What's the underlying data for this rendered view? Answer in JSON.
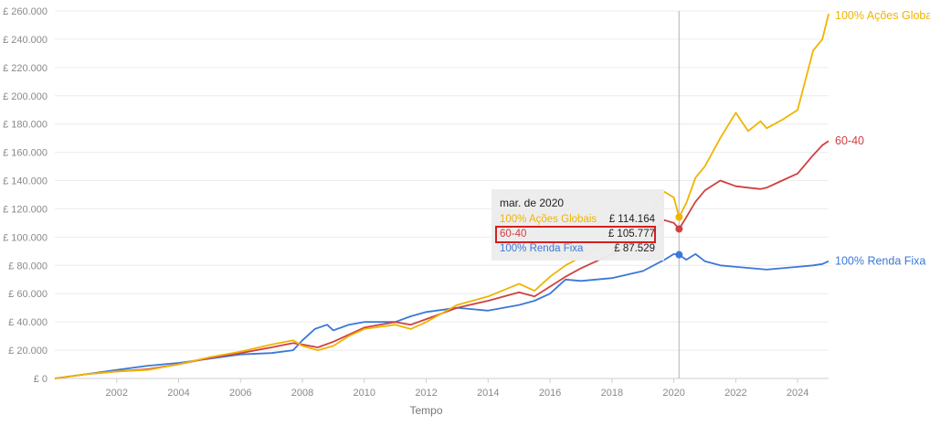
{
  "chart_data": {
    "type": "line",
    "xlabel": "Tempo",
    "ylabel": "",
    "xlim": [
      2000.0,
      2025.0
    ],
    "ylim": [
      0,
      260000
    ],
    "y_ticks": [
      0,
      20000,
      40000,
      60000,
      80000,
      100000,
      120000,
      140000,
      160000,
      180000,
      200000,
      220000,
      240000,
      260000
    ],
    "y_tick_labels": [
      "£ 0",
      "£ 20.000",
      "£ 40.000",
      "£ 60.000",
      "£ 80.000",
      "£ 100.000",
      "£ 120.000",
      "£ 140.000",
      "£ 160.000",
      "£ 180.000",
      "£ 200.000",
      "£ 220.000",
      "£ 240.000",
      "£ 260.000"
    ],
    "x_ticks": [
      2002,
      2004,
      2006,
      2008,
      2010,
      2012,
      2014,
      2016,
      2018,
      2020,
      2022,
      2024
    ],
    "x_tick_labels": [
      "2002",
      "2004",
      "2006",
      "2008",
      "2010",
      "2012",
      "2014",
      "2016",
      "2018",
      "2020",
      "2022",
      "2024"
    ],
    "grid": true,
    "legend": "end-of-line labels",
    "series": [
      {
        "name": "100% Ações Globais",
        "color": "#f0b400",
        "x": [
          2000.0,
          2001.0,
          2002.0,
          2003.0,
          2004.0,
          2005.0,
          2006.0,
          2007.0,
          2007.7,
          2008.0,
          2008.5,
          2009.0,
          2009.5,
          2010.0,
          2011.0,
          2011.5,
          2012.0,
          2013.0,
          2014.0,
          2015.0,
          2015.5,
          2016.0,
          2016.5,
          2017.0,
          2018.0,
          2019.0,
          2019.7,
          2020.0,
          2020.17,
          2020.4,
          2020.7,
          2021.0,
          2021.5,
          2022.0,
          2022.4,
          2022.8,
          2023.0,
          2023.5,
          2024.0,
          2024.5,
          2024.8,
          2025.0
        ],
        "values": [
          0,
          3000,
          5000,
          6000,
          10000,
          15000,
          19000,
          24000,
          27000,
          23000,
          20000,
          23000,
          30000,
          35000,
          38000,
          35000,
          40000,
          52000,
          58000,
          67000,
          62000,
          72000,
          80000,
          86000,
          98000,
          110000,
          132000,
          128000,
          114164,
          124000,
          142000,
          150000,
          170000,
          188000,
          175000,
          182000,
          177000,
          183000,
          190000,
          232000,
          240000,
          258000
        ]
      },
      {
        "name": "60-40",
        "color": "#d04040",
        "x": [
          2000.0,
          2001.0,
          2002.0,
          2003.0,
          2004.0,
          2005.0,
          2006.0,
          2007.0,
          2007.7,
          2008.0,
          2008.5,
          2009.0,
          2009.5,
          2010.0,
          2011.0,
          2011.5,
          2012.0,
          2013.0,
          2014.0,
          2015.0,
          2015.5,
          2016.0,
          2016.5,
          2017.0,
          2018.0,
          2019.0,
          2019.7,
          2020.0,
          2020.17,
          2020.4,
          2020.7,
          2021.0,
          2021.5,
          2022.0,
          2022.4,
          2022.8,
          2023.0,
          2023.5,
          2024.0,
          2024.5,
          2024.8,
          2025.0
        ],
        "values": [
          0,
          3000,
          5000,
          6500,
          10000,
          14500,
          18000,
          22000,
          25000,
          24000,
          22000,
          26000,
          31000,
          36000,
          40000,
          38000,
          42000,
          50000,
          55000,
          61000,
          58000,
          65000,
          72000,
          78000,
          88000,
          97000,
          112000,
          110000,
          105777,
          114000,
          125000,
          133000,
          140000,
          136000,
          135000,
          134000,
          135000,
          140000,
          145000,
          158000,
          165000,
          168000
        ]
      },
      {
        "name": "100% Renda Fixa",
        "color": "#3b78d8",
        "x": [
          2000.0,
          2001.0,
          2002.0,
          2003.0,
          2004.0,
          2005.0,
          2006.0,
          2007.0,
          2007.7,
          2008.0,
          2008.4,
          2008.8,
          2009.0,
          2009.5,
          2010.0,
          2011.0,
          2011.5,
          2012.0,
          2013.0,
          2014.0,
          2015.0,
          2015.5,
          2016.0,
          2016.5,
          2017.0,
          2018.0,
          2019.0,
          2019.7,
          2020.0,
          2020.17,
          2020.4,
          2020.7,
          2021.0,
          2021.5,
          2022.0,
          2022.5,
          2023.0,
          2023.5,
          2024.0,
          2024.5,
          2024.8,
          2025.0
        ],
        "values": [
          0,
          3000,
          6000,
          9000,
          11000,
          14000,
          17000,
          18000,
          20000,
          27000,
          35000,
          38000,
          34000,
          38000,
          40000,
          40000,
          44000,
          47000,
          50000,
          48000,
          52000,
          55000,
          60000,
          70000,
          69000,
          71000,
          76000,
          84000,
          88000,
          87529,
          84000,
          88000,
          83000,
          80000,
          79000,
          78000,
          77000,
          78000,
          79000,
          80000,
          81000,
          83000
        ]
      }
    ],
    "crosshair_x": 2020.17
  },
  "tooltip": {
    "title": "mar. de 2020",
    "rows": [
      {
        "name": "100% Ações Globais",
        "value": "£ 114.164",
        "color": "#f0b400"
      },
      {
        "name": "60-40",
        "value": "£ 105.777",
        "color": "#d04040"
      },
      {
        "name": "100% Renda Fixa",
        "value": "£ 87.529",
        "color": "#3b78d8"
      }
    ],
    "highlight_color": "#d42020"
  }
}
